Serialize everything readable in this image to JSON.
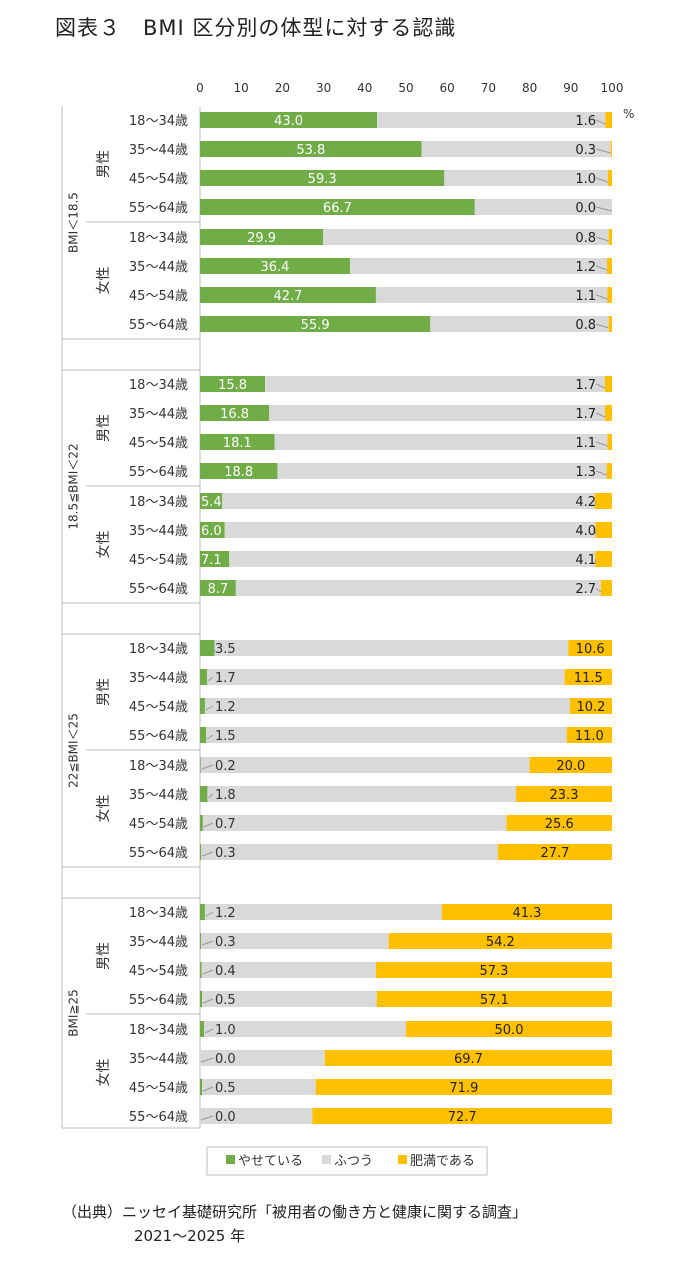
{
  "title": "図表３　BMI 区分別の体型に対する認識",
  "chart_data": {
    "type": "bar",
    "stacked": true,
    "orientation": "horizontal",
    "x_unit": "%",
    "xlim": [
      0,
      100
    ],
    "xticks": [
      0,
      10,
      20,
      30,
      40,
      50,
      60,
      70,
      80,
      90,
      100
    ],
    "legend_position": "bottom",
    "series": [
      {
        "name": "やせている",
        "color": "#70ad47"
      },
      {
        "name": "ふつう",
        "color": "#d9d9d9"
      },
      {
        "name": "肥満である",
        "color": "#ffc000"
      }
    ],
    "groups": [
      {
        "label": "BMI＜18.5",
        "sexes": [
          {
            "label": "男性",
            "rows": [
              {
                "age": "18～34歳",
                "thin": "43.0",
                "fat": "1.6"
              },
              {
                "age": "35～44歳",
                "thin": "53.8",
                "fat": "0.3"
              },
              {
                "age": "45～54歳",
                "thin": "59.3",
                "fat": "1.0"
              },
              {
                "age": "55～64歳",
                "thin": "66.7",
                "fat": "0.0"
              }
            ]
          },
          {
            "label": "女性",
            "rows": [
              {
                "age": "18～34歳",
                "thin": "29.9",
                "fat": "0.8"
              },
              {
                "age": "35～44歳",
                "thin": "36.4",
                "fat": "1.2"
              },
              {
                "age": "45～54歳",
                "thin": "42.7",
                "fat": "1.1"
              },
              {
                "age": "55～64歳",
                "thin": "55.9",
                "fat": "0.8"
              }
            ]
          }
        ]
      },
      {
        "label": "18.5≦BMI＜22",
        "sexes": [
          {
            "label": "男性",
            "rows": [
              {
                "age": "18～34歳",
                "thin": "15.8",
                "fat": "1.7"
              },
              {
                "age": "35～44歳",
                "thin": "16.8",
                "fat": "1.7"
              },
              {
                "age": "45～54歳",
                "thin": "18.1",
                "fat": "1.1"
              },
              {
                "age": "55～64歳",
                "thin": "18.8",
                "fat": "1.3"
              }
            ]
          },
          {
            "label": "女性",
            "rows": [
              {
                "age": "18～34歳",
                "thin": "5.4",
                "fat": "4.2"
              },
              {
                "age": "35～44歳",
                "thin": "6.0",
                "fat": "4.0"
              },
              {
                "age": "45～54歳",
                "thin": "7.1",
                "fat": "4.1"
              },
              {
                "age": "55～64歳",
                "thin": "8.7",
                "fat": "2.7"
              }
            ]
          }
        ]
      },
      {
        "label": "22≦BMI＜25",
        "sexes": [
          {
            "label": "男性",
            "rows": [
              {
                "age": "18～34歳",
                "thin": "3.5",
                "fat": "10.6"
              },
              {
                "age": "35～44歳",
                "thin": "1.7",
                "fat": "11.5"
              },
              {
                "age": "45～54歳",
                "thin": "1.2",
                "fat": "10.2"
              },
              {
                "age": "55～64歳",
                "thin": "1.5",
                "fat": "11.0"
              }
            ]
          },
          {
            "label": "女性",
            "rows": [
              {
                "age": "18～34歳",
                "thin": "0.2",
                "fat": "20.0"
              },
              {
                "age": "35～44歳",
                "thin": "1.8",
                "fat": "23.3"
              },
              {
                "age": "45～54歳",
                "thin": "0.7",
                "fat": "25.6"
              },
              {
                "age": "55～64歳",
                "thin": "0.3",
                "fat": "27.7"
              }
            ]
          }
        ]
      },
      {
        "label": "BMI≧25",
        "sexes": [
          {
            "label": "男性",
            "rows": [
              {
                "age": "18～34歳",
                "thin": "1.2",
                "fat": "41.3"
              },
              {
                "age": "35～44歳",
                "thin": "0.3",
                "fat": "54.2"
              },
              {
                "age": "45～54歳",
                "thin": "0.4",
                "fat": "57.3"
              },
              {
                "age": "55～64歳",
                "thin": "0.5",
                "fat": "57.1"
              }
            ]
          },
          {
            "label": "女性",
            "rows": [
              {
                "age": "18～34歳",
                "thin": "1.0",
                "fat": "50.0"
              },
              {
                "age": "35～44歳",
                "thin": "0.0",
                "fat": "69.7"
              },
              {
                "age": "45～54歳",
                "thin": "0.5",
                "fat": "71.9"
              },
              {
                "age": "55～64歳",
                "thin": "0.0",
                "fat": "72.7"
              }
            ]
          }
        ]
      }
    ]
  },
  "source": {
    "line1": "（出典）ニッセイ基礎研究所「被用者の働き方と健康に関する調査」",
    "line2": "2021～2025 年"
  }
}
